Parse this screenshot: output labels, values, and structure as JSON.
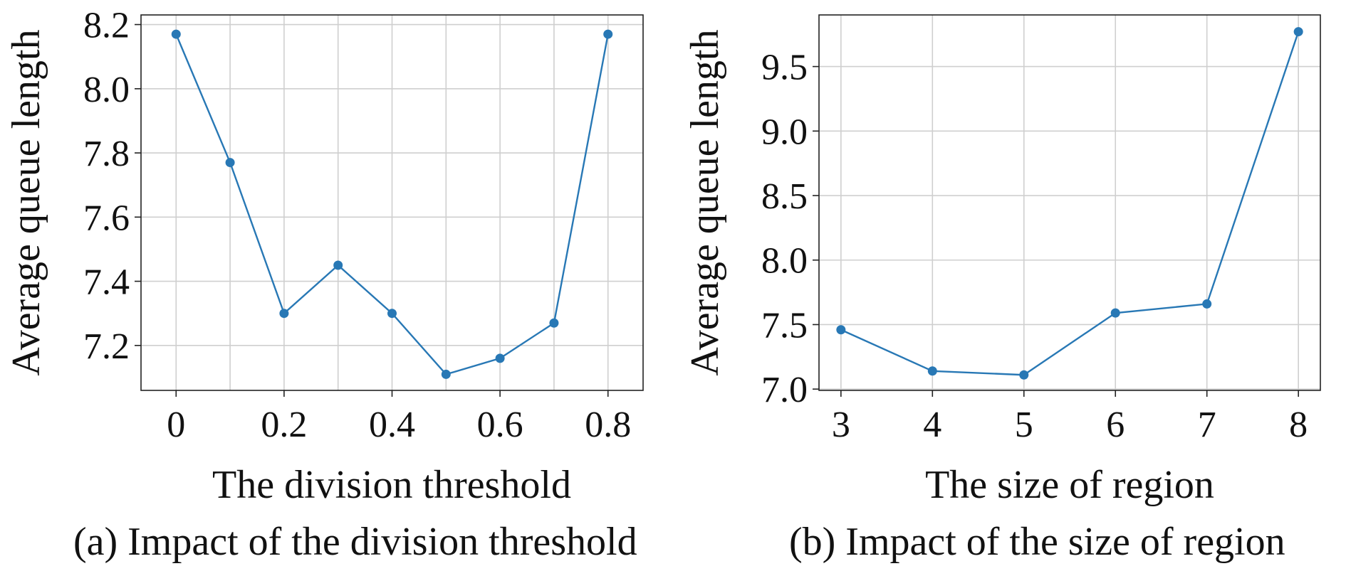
{
  "chart_data": [
    {
      "type": "line",
      "caption": "(a) Impact of the division threshold",
      "xlabel": "The division threshold",
      "ylabel": "Average queue length",
      "x": [
        0,
        0.1,
        0.2,
        0.3,
        0.4,
        0.5,
        0.6,
        0.7,
        0.8
      ],
      "series": [
        {
          "values": [
            8.17,
            7.77,
            7.3,
            7.45,
            7.3,
            7.11,
            7.16,
            7.27,
            8.17
          ]
        }
      ],
      "xticks": [
        0,
        0.2,
        0.4,
        0.6,
        0.8
      ],
      "xtick_labels": [
        "0",
        "0.2",
        "0.4",
        "0.6",
        "0.8"
      ],
      "yticks": [
        7.2,
        7.4,
        7.6,
        7.8,
        8.0,
        8.2
      ],
      "ytick_labels": [
        "7.2",
        "7.4",
        "7.6",
        "7.8",
        "8.0",
        "8.2"
      ],
      "xlim": [
        -0.065,
        0.865
      ],
      "ylim": [
        7.06,
        8.23
      ],
      "grid": true,
      "color": "#2878b5"
    },
    {
      "type": "line",
      "caption": "(b) Impact of the size of region",
      "xlabel": "The size of region",
      "ylabel": "Average queue length",
      "x": [
        3,
        4,
        5,
        6,
        7,
        8
      ],
      "series": [
        {
          "values": [
            7.46,
            7.14,
            7.11,
            7.59,
            7.66,
            9.77
          ]
        }
      ],
      "xticks": [
        3,
        4,
        5,
        6,
        7,
        8
      ],
      "xtick_labels": [
        "3",
        "4",
        "5",
        "6",
        "7",
        "8"
      ],
      "yticks": [
        7.0,
        7.5,
        8.0,
        8.5,
        9.0,
        9.5
      ],
      "ytick_labels": [
        "7.0",
        "7.5",
        "8.0",
        "8.5",
        "9.0",
        "9.5"
      ],
      "xlim": [
        2.76,
        8.24
      ],
      "ylim": [
        6.99,
        9.9
      ],
      "grid": true,
      "color": "#2878b5"
    }
  ]
}
